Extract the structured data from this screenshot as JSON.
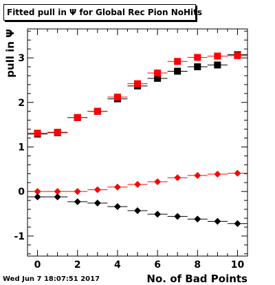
{
  "title": "Fitted pull in Ψ for Global Rec Pion NoHits",
  "footer": "Wed Jun  7 18:07:51 2017",
  "chart_data": {
    "type": "scatter",
    "xlabel": "No. of Bad Points",
    "ylabel": "pull in Ψ",
    "xlim": [
      -0.5,
      10.5
    ],
    "ylim": [
      -1.45,
      3.65
    ],
    "xticks": [
      0,
      2,
      4,
      6,
      8,
      10
    ],
    "yticks": [
      -1,
      0,
      1,
      2,
      3
    ],
    "x_bin_halfwidth": 0.5,
    "grid": false,
    "legend": "none",
    "series": [
      {
        "marker": "square",
        "color": "#000000",
        "x": [
          0,
          1,
          2,
          3,
          4,
          5,
          6,
          7,
          8,
          9,
          10
        ],
        "y": [
          1.29,
          1.32,
          1.66,
          1.8,
          2.08,
          2.37,
          2.54,
          2.7,
          2.8,
          2.84,
          3.07
        ]
      },
      {
        "marker": "square",
        "color": "#ff0000",
        "x": [
          0,
          1,
          2,
          3,
          4,
          5,
          6,
          7,
          8,
          9,
          10
        ],
        "y": [
          1.31,
          1.33,
          1.66,
          1.8,
          2.12,
          2.42,
          2.66,
          2.92,
          3.01,
          3.04,
          3.05
        ]
      },
      {
        "marker": "diamond",
        "color": "#ff0000",
        "x": [
          0,
          1,
          2,
          3,
          4,
          5,
          6,
          7,
          8,
          9,
          10
        ],
        "y": [
          0.0,
          0.0,
          0.0,
          0.04,
          0.1,
          0.16,
          0.22,
          0.31,
          0.36,
          0.39,
          0.41
        ]
      },
      {
        "marker": "diamond",
        "color": "#000000",
        "x": [
          0,
          1,
          2,
          3,
          4,
          5,
          6,
          7,
          8,
          9,
          10
        ],
        "y": [
          -0.12,
          -0.12,
          -0.23,
          -0.26,
          -0.34,
          -0.43,
          -0.51,
          -0.56,
          -0.62,
          -0.67,
          -0.72
        ]
      }
    ]
  }
}
